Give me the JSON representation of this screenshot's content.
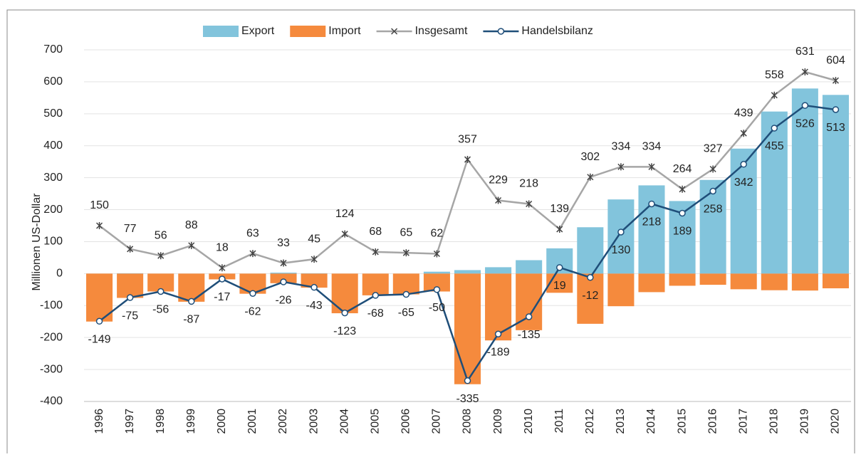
{
  "chart_data": {
    "type": "bar",
    "y_label": "Millionen US-Dollar",
    "categories": [
      "1996",
      "1997",
      "1998",
      "1999",
      "2000",
      "2001",
      "2002",
      "2003",
      "2004",
      "2005",
      "2006",
      "2007",
      "2008",
      "2009",
      "2010",
      "2011",
      "2012",
      "2013",
      "2014",
      "2015",
      "2016",
      "2017",
      "2018",
      "2019",
      "2020"
    ],
    "series": [
      {
        "name": "Export",
        "type": "bar",
        "color": "#82c4dc",
        "values": [
          0,
          1,
          0,
          0,
          0,
          0,
          3,
          1,
          0,
          0,
          0,
          6,
          11,
          20,
          42,
          79,
          145,
          232,
          276,
          227,
          293,
          391,
          507,
          579,
          559
        ]
      },
      {
        "name": "Import",
        "type": "bar",
        "color": "#f58a3d",
        "values": [
          -150,
          -76,
          -56,
          -88,
          -18,
          -63,
          -30,
          -44,
          -124,
          -68,
          -65,
          -56,
          -346,
          -209,
          -177,
          -60,
          -157,
          -102,
          -58,
          -38,
          -35,
          -49,
          -52,
          -53,
          -46
        ]
      },
      {
        "name": "Insgesamt",
        "type": "line",
        "color": "#a6a6a6",
        "labels": "above",
        "values": [
          150,
          77,
          56,
          88,
          18,
          63,
          33,
          45,
          124,
          68,
          65,
          62,
          357,
          229,
          218,
          139,
          302,
          334,
          334,
          264,
          327,
          439,
          558,
          631,
          604
        ]
      },
      {
        "name": "Handelsbilanz",
        "type": "line",
        "color": "#1f4e79",
        "labels": "below",
        "values": [
          -149,
          -75,
          -56,
          -87,
          -17,
          -62,
          -26,
          -43,
          -123,
          -68,
          -65,
          -50,
          -335,
          -189,
          -135,
          19,
          -12,
          130,
          218,
          189,
          258,
          342,
          455,
          526,
          513
        ]
      }
    ],
    "ylim": [
      -400,
      700
    ],
    "yticks": [
      -400,
      -300,
      -200,
      -100,
      0,
      100,
      200,
      300,
      400,
      500,
      600,
      700
    ],
    "grid": true,
    "legend": "top"
  }
}
